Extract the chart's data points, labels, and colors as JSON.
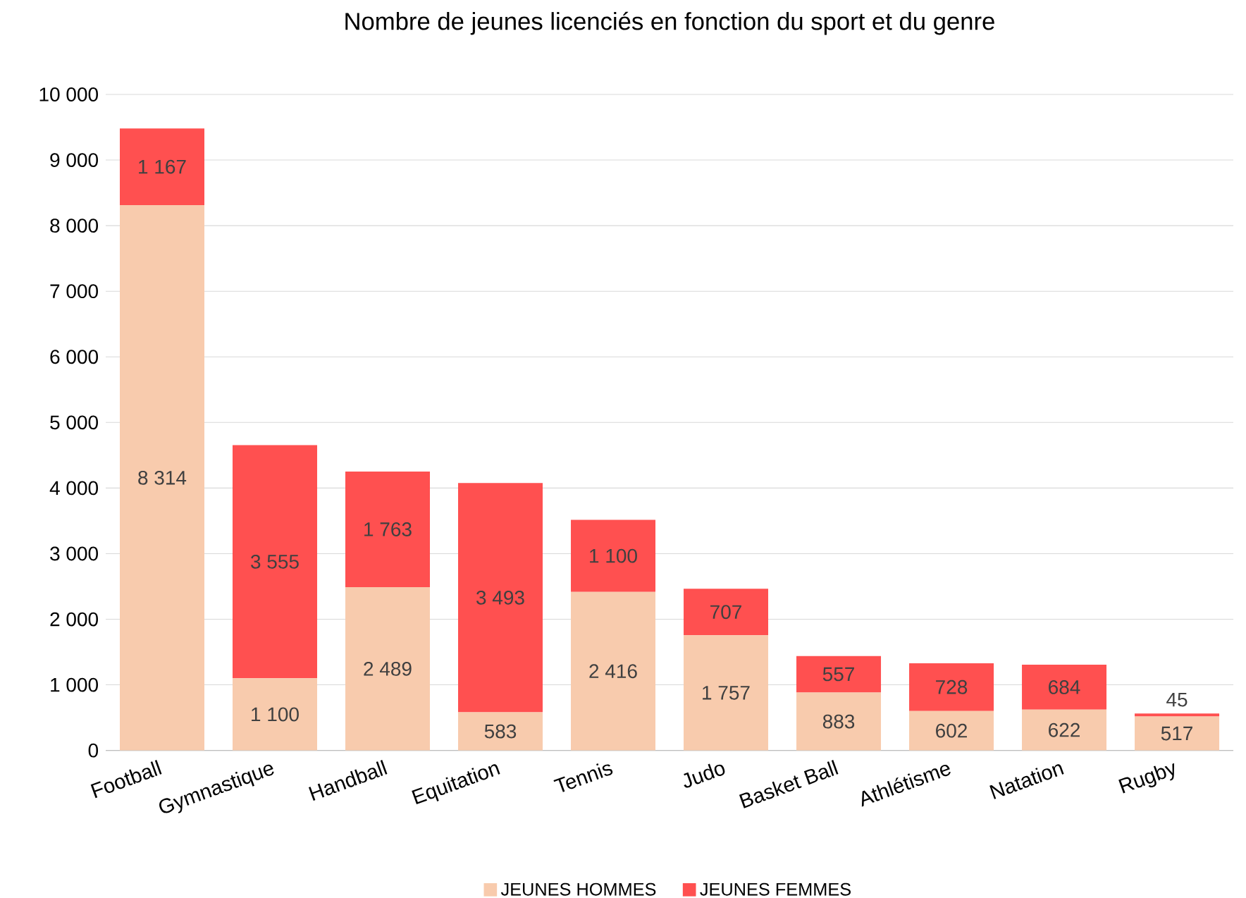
{
  "chart_data": {
    "type": "bar",
    "stacked": true,
    "title": "Nombre de jeunes licenciés en fonction du sport et du genre",
    "categories": [
      "Football",
      "Gymnastique",
      "Handball",
      "Equitation",
      "Tennis",
      "Judo",
      "Basket Ball",
      "Athlétisme",
      "Natation",
      "Rugby"
    ],
    "series": [
      {
        "name": "JEUNES HOMMES",
        "color": "#f8cbad",
        "values": [
          8314,
          1100,
          2489,
          583,
          2416,
          1757,
          883,
          602,
          622,
          517
        ],
        "value_labels": [
          "8 314",
          "1 100",
          "2 489",
          "583",
          "2 416",
          "1 757",
          "883",
          "602",
          "622",
          "517"
        ]
      },
      {
        "name": "JEUNES FEMMES",
        "color": "#ff5050",
        "values": [
          1167,
          3555,
          1763,
          3493,
          1100,
          707,
          557,
          728,
          684,
          45
        ],
        "value_labels": [
          "1 167",
          "3 555",
          "1 763",
          "3 493",
          "1 100",
          "707",
          "557",
          "728",
          "684",
          "45"
        ]
      }
    ],
    "ylim": [
      0,
      10000
    ],
    "yticks": [
      0,
      {
        "value": 1000,
        "label": "1 000"
      },
      {
        "value": 2000,
        "label": "2 000"
      },
      {
        "value": 3000,
        "label": "3 000"
      },
      {
        "value": 4000,
        "label": "4 000"
      },
      {
        "value": 5000,
        "label": "5 000"
      },
      {
        "value": 6000,
        "label": "6 000"
      },
      {
        "value": 7000,
        "label": "7 000"
      },
      {
        "value": 8000,
        "label": "8 000"
      },
      {
        "value": 9000,
        "label": "9 000"
      },
      {
        "value": 10000,
        "label": "10 000"
      }
    ],
    "grid": "y",
    "legend": "bottom"
  }
}
